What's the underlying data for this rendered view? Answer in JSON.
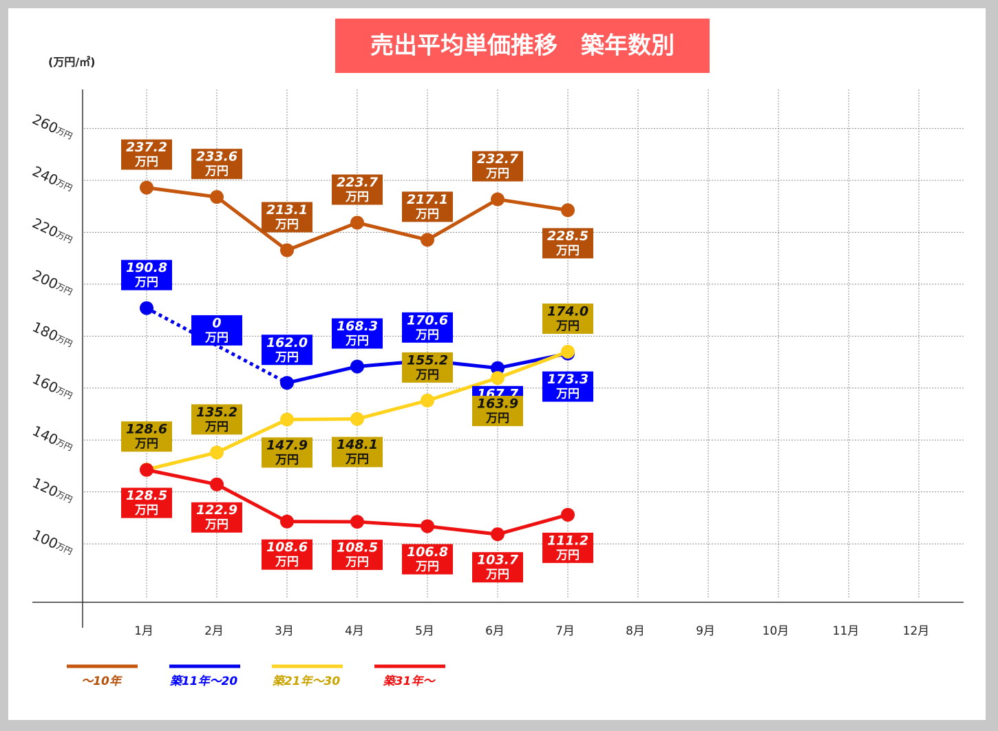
{
  "chart_data": {
    "type": "line",
    "title": "売出平均単価推移　築年数別",
    "y_axis_label": "(万円/㎡)",
    "ytick_suffix": "万円",
    "value_unit": "万円",
    "categories": [
      "1月",
      "2月",
      "3月",
      "4月",
      "5月",
      "6月",
      "7月",
      "8月",
      "9月",
      "10月",
      "11月",
      "12月"
    ],
    "ylim": [
      77.5,
      275
    ],
    "yticks": [
      100,
      120,
      140,
      160,
      180,
      200,
      220,
      240,
      260
    ],
    "grid": true,
    "legend": "bottom-left",
    "series": [
      {
        "name": "～10年",
        "color": "#c5560d",
        "label_color": "#b5500b",
        "label_text_color": "#ffffff",
        "values": [
          237.2,
          233.6,
          213.1,
          223.7,
          217.1,
          232.7,
          228.5,
          null,
          null,
          null,
          null,
          null
        ],
        "value_labels": [
          "237.2",
          "233.6",
          "213.1",
          "223.7",
          "217.1",
          "232.7",
          "228.5",
          null,
          null,
          null,
          null,
          null
        ]
      },
      {
        "name": "築11年～20",
        "color": "#0000ee",
        "label_color": "#0000ff",
        "label_text_color": "#ffffff",
        "values": [
          190.8,
          0,
          162.0,
          168.3,
          170.6,
          167.7,
          173.3,
          null,
          null,
          null,
          null,
          null
        ],
        "value_labels": [
          "190.8",
          "0",
          "162.0",
          "168.3",
          "170.6",
          "167.7",
          "173.3",
          null,
          null,
          null,
          null,
          null
        ]
      },
      {
        "name": "築21年～30",
        "color": "#ffd21e",
        "label_color": "#c9a400",
        "label_text_color": "#111111",
        "values": [
          128.6,
          135.2,
          147.9,
          148.1,
          155.2,
          163.9,
          174.0,
          null,
          null,
          null,
          null,
          null
        ],
        "value_labels": [
          "128.6",
          "135.2",
          "147.9",
          "148.1",
          "155.2",
          "163.9",
          "174.0",
          null,
          null,
          null,
          null,
          null
        ]
      },
      {
        "name": "築31年～",
        "color": "#ee1111",
        "label_color": "#ee1111",
        "label_text_color": "#ffffff",
        "values": [
          128.5,
          122.9,
          108.6,
          108.5,
          106.8,
          103.7,
          111.2,
          null,
          null,
          null,
          null,
          null
        ],
        "value_labels": [
          "128.5",
          "122.9",
          "108.6",
          "108.5",
          "106.8",
          "103.7",
          "111.2",
          null,
          null,
          null,
          null,
          null
        ]
      }
    ]
  }
}
